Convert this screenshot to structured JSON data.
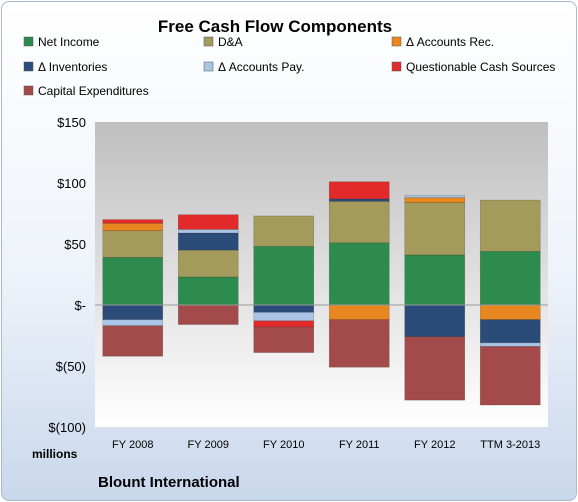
{
  "chart_data": {
    "type": "bar",
    "stacked": true,
    "title": "Free Cash Flow Components",
    "units_label": "millions",
    "footer": "Blount International",
    "categories": [
      "FY 2008",
      "FY 2009",
      "FY 2010",
      "FY 2011",
      "FY 2012",
      "TTM 3-2013"
    ],
    "y_ticks": [
      "$150",
      "$100",
      "$50",
      "$-",
      "$(50)",
      "$(100)"
    ],
    "ylim": [
      -100,
      150
    ],
    "grid": false,
    "legend_position": "top",
    "series": [
      {
        "name": "Net Income",
        "color": "#2e8b4e",
        "values": [
          39,
          23,
          48,
          51,
          41,
          44
        ]
      },
      {
        "name": "D&A",
        "color": "#a39a5c",
        "values": [
          22,
          22,
          25,
          34,
          43,
          42
        ]
      },
      {
        "name": "Δ Accounts Rec.",
        "color": "#e8861f",
        "values": [
          6,
          0,
          0,
          -12,
          4,
          -12
        ]
      },
      {
        "name": "Δ Inventories",
        "color": "#2b4b78",
        "values": [
          -12,
          14,
          -6,
          2,
          -26,
          -19
        ]
      },
      {
        "name": "Δ Accounts Pay.",
        "color": "#a9c4e4",
        "values": [
          -5,
          3,
          -7,
          0,
          2,
          -3
        ]
      },
      {
        "name": "Questionable Cash Sources",
        "color": "#e32a2a",
        "values": [
          3,
          12,
          -5,
          14,
          0,
          0
        ]
      },
      {
        "name": "Capital Expenditures",
        "color": "#a34b4b",
        "values": [
          -25,
          -16,
          -21,
          -39,
          -52,
          -48
        ]
      }
    ]
  }
}
